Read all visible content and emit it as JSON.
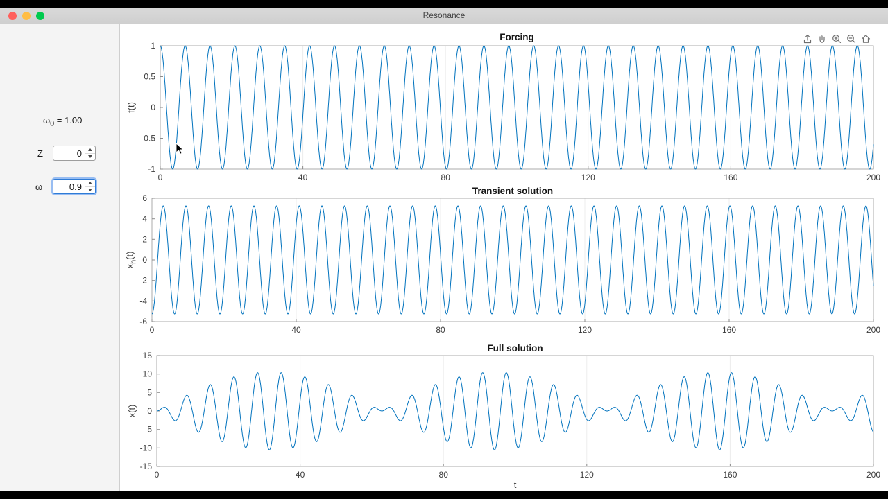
{
  "window": {
    "title": "Resonance"
  },
  "sidebar": {
    "omega0": {
      "symbol": "ω",
      "sub": "0",
      "rest": " = 1.00"
    },
    "z": {
      "label": "Z",
      "value": "0"
    },
    "omega": {
      "label": "ω",
      "value": "0.9"
    }
  },
  "toolbar": {
    "icons": [
      "export",
      "pan",
      "zoom-in",
      "zoom-out",
      "home"
    ]
  },
  "chart_data": [
    {
      "type": "line",
      "title": "Forcing",
      "ylabel_main": "f",
      "ylabel_sub": "",
      "ylabel_rest": "(t)",
      "xlabel": "",
      "xlim": [
        0,
        200
      ],
      "ylim": [
        -1,
        1
      ],
      "xticks": [
        0,
        40,
        80,
        120,
        160,
        200
      ],
      "yticks": [
        -1,
        -0.5,
        0,
        0.5,
        1
      ],
      "line_color": "#0072BD",
      "grid": "faint-vertical",
      "signal": {
        "kind": "cos",
        "amplitude": 1,
        "omega": 0.9
      }
    },
    {
      "type": "line",
      "title": "Transient solution",
      "ylabel_main": "x",
      "ylabel_sub": "h",
      "ylabel_rest": "(t)",
      "xlabel": "",
      "xlim": [
        0,
        200
      ],
      "ylim": [
        -6,
        6
      ],
      "xticks": [
        0,
        40,
        80,
        120,
        160,
        200
      ],
      "yticks": [
        -6,
        -4,
        -2,
        0,
        2,
        4,
        6
      ],
      "line_color": "#0072BD",
      "grid": "faint-vertical",
      "signal": {
        "kind": "cos",
        "amplitude": -5.26,
        "omega": 1.0
      }
    },
    {
      "type": "line",
      "title": "Full solution",
      "ylabel_main": "x",
      "ylabel_sub": "",
      "ylabel_rest": "(t)",
      "xlabel": "t",
      "xlim": [
        0,
        200
      ],
      "ylim": [
        -15,
        15
      ],
      "xticks": [
        0,
        40,
        80,
        120,
        160,
        200
      ],
      "yticks": [
        -15,
        -10,
        -5,
        0,
        5,
        10,
        15
      ],
      "line_color": "#0072BD",
      "grid": "faint-vertical",
      "signal": {
        "kind": "beat",
        "amplitude": 5.26,
        "omega1": 0.9,
        "omega2": 1.0
      }
    }
  ]
}
